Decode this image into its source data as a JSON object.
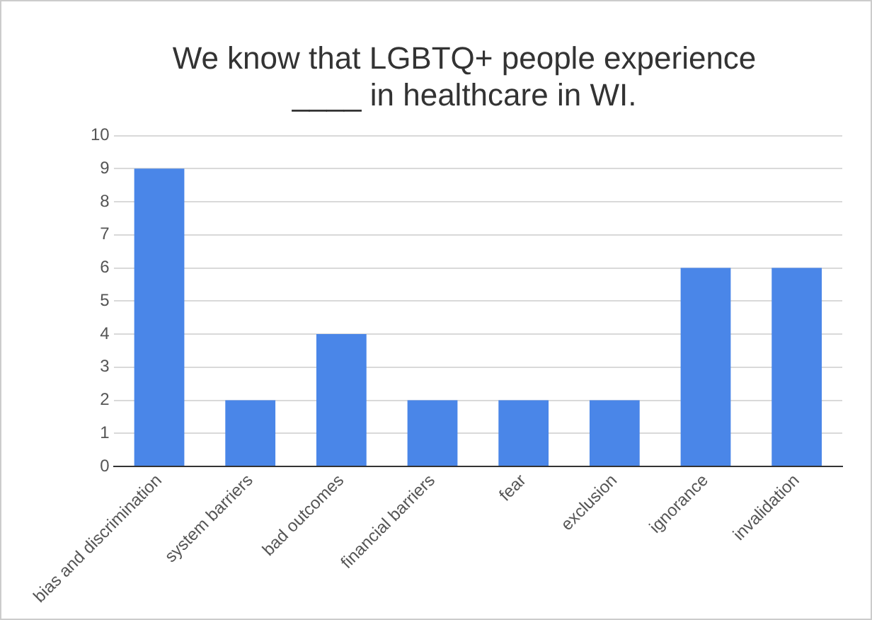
{
  "chart_data": {
    "type": "bar",
    "title": "We know that LGBTQ+ people experience ____ in healthcare in WI.",
    "categories": [
      "bias and discrimination",
      "system barriers",
      "bad outcomes",
      "financial barriers",
      "fear",
      "exclusion",
      "ignorance",
      "invalidation"
    ],
    "values": [
      9,
      2,
      4,
      2,
      2,
      2,
      6,
      6
    ],
    "color": "#4a86e8",
    "ylim": [
      0,
      10
    ],
    "yticks": [
      0,
      1,
      2,
      3,
      4,
      5,
      6,
      7,
      8,
      9,
      10
    ],
    "grid": "y",
    "legend": false
  }
}
